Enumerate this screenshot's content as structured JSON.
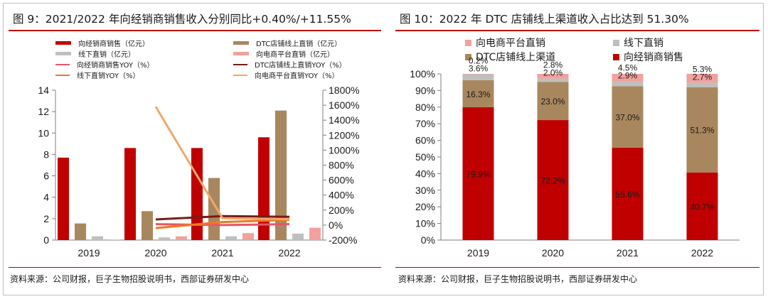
{
  "left_panel": {
    "title": "图 9：2021/2022 年向经销商销售收入分别同比+0.40%/+11.55%",
    "source": "资料来源：公司财报，巨子生物招股说明书，西部证券研发中心"
  },
  "right_panel": {
    "title": "图 10：2022 年 DTC 店铺线上渠道收入占比达到 51.30%",
    "source": "资料来源：公司财报，巨子生物招股说明书，西部证券研发中心"
  },
  "chart_data": [
    {
      "type": "bar",
      "categories": [
        "2019",
        "2020",
        "2021",
        "2022"
      ],
      "series": [
        {
          "name": "向经销商销售（亿元）",
          "values": [
            7.7,
            8.6,
            8.6,
            9.6
          ],
          "axis": "left",
          "color": "#c00000"
        },
        {
          "name": "DTC店铺线上直销（亿元）",
          "values": [
            1.55,
            2.7,
            5.8,
            12.1
          ],
          "axis": "left",
          "color": "#a9875e"
        },
        {
          "name": "线下直销（亿元）",
          "values": [
            0.35,
            0.25,
            0.35,
            0.6
          ],
          "axis": "left",
          "color": "#bfbfbf"
        },
        {
          "name": "向电商平台直销（亿元）",
          "values": [
            0.02,
            0.35,
            0.65,
            1.15
          ],
          "axis": "left",
          "color": "#f2a29e"
        },
        {
          "name": "向经销商销售YOY（%）",
          "values": [
            null,
            12,
            0.4,
            11.55
          ],
          "axis": "right",
          "color": "#e8566a",
          "kind": "line"
        },
        {
          "name": "DTC店铺线上直销YOY（%）",
          "values": [
            null,
            75,
            120,
            110
          ],
          "axis": "right",
          "color": "#7b1a1a",
          "kind": "line"
        },
        {
          "name": "线下直销YOY（%）",
          "values": [
            null,
            -40,
            40,
            70
          ],
          "axis": "right",
          "color": "#f07820",
          "kind": "line"
        },
        {
          "name": "向电商平台直销YOY（%）",
          "values": [
            null,
            1580,
            90,
            80
          ],
          "axis": "right",
          "color": "#f0a86a",
          "kind": "line"
        }
      ],
      "ylim": [
        0,
        14
      ],
      "yticks": [
        "0",
        "2",
        "4",
        "6",
        "8",
        "10",
        "12",
        "14"
      ],
      "y2lim": [
        -200,
        1800
      ],
      "y2ticks": [
        "-200%",
        "0%",
        "200%",
        "400%",
        "600%",
        "800%",
        "1000%",
        "1200%",
        "1400%",
        "1600%",
        "1800%"
      ],
      "legend": "top",
      "grid": false
    },
    {
      "type": "bar",
      "stacked": true,
      "categories": [
        "2019",
        "2020",
        "2021",
        "2022"
      ],
      "series": [
        {
          "name": "向经销商销售",
          "values": [
            79.9,
            72.2,
            55.6,
            40.7
          ],
          "color": "#c00000"
        },
        {
          "name": "DTC店铺线上渠道",
          "values": [
            16.3,
            23.0,
            37.0,
            51.3
          ],
          "color": "#a9875e"
        },
        {
          "name": "线下直销",
          "values": [
            3.6,
            2.0,
            2.9,
            2.7
          ],
          "color": "#bfbfbf"
        },
        {
          "name": "向电商平台直销",
          "values": [
            0.2,
            2.8,
            4.5,
            5.3
          ],
          "color": "#f2a29e"
        }
      ],
      "labels": [
        [
          "79.9%",
          "72.2%",
          "55.6%",
          "40.7%"
        ],
        [
          "16.3%",
          "23.0%",
          "37.0%",
          "51.3%"
        ],
        [
          "3.6%",
          "2.0%",
          "2.9%",
          "2.7%"
        ],
        [
          "0.2%",
          "2.8%",
          "4.5%",
          "5.3%"
        ]
      ],
      "ylim": [
        0,
        100
      ],
      "yticks": [
        "0%",
        "10%",
        "20%",
        "30%",
        "40%",
        "50%",
        "60%",
        "70%",
        "80%",
        "90%",
        "100%"
      ],
      "legend": "top",
      "grid": false
    }
  ]
}
